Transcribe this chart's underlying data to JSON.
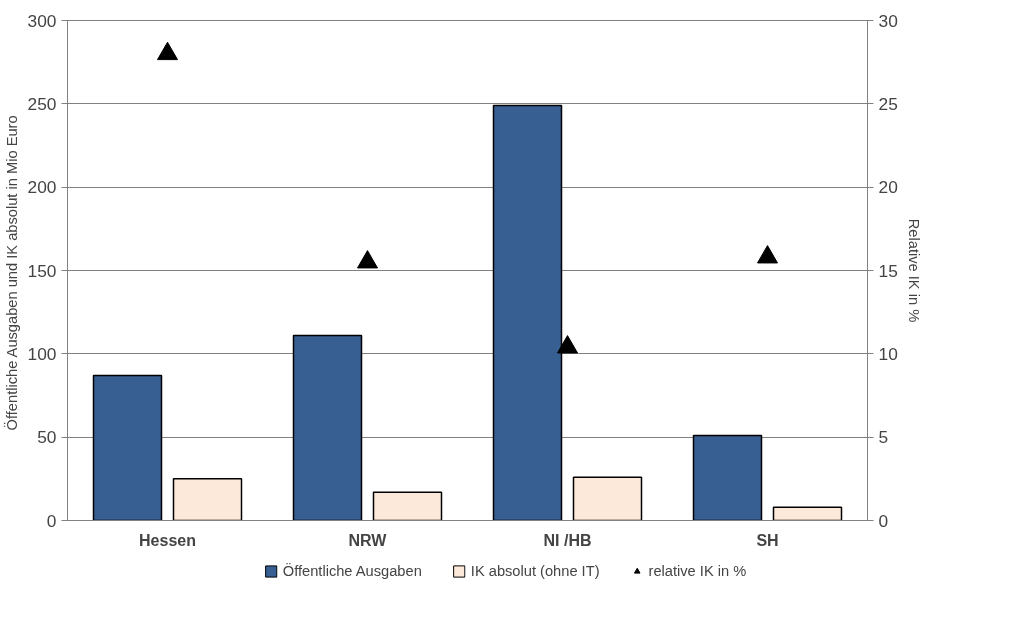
{
  "chart_data": {
    "type": "bar",
    "categories": [
      "Hessen",
      "NRW",
      "NI /HB",
      "SH"
    ],
    "series": [
      {
        "name": "Öffentliche Ausgaben",
        "color": "#375f91",
        "values": [
          87,
          111,
          249,
          51
        ]
      },
      {
        "name": "IK absolut (ohne IT)",
        "color": "#fce9d9",
        "values": [
          25,
          17,
          26,
          8
        ]
      },
      {
        "name": "relative IK in %",
        "color": "#000000",
        "type": "scatter",
        "axis": "y2",
        "values": [
          28.0,
          15.5,
          10.4,
          15.8
        ]
      }
    ],
    "ylabel": "Öffentliche Ausgaben und IK absolut in Mio  Euro",
    "y2label": "Relative IK in %",
    "ylim": [
      0,
      300
    ],
    "yticks": [
      0,
      50,
      100,
      150,
      200,
      250,
      300
    ],
    "y2lim": [
      0,
      30
    ],
    "y2ticks": [
      0,
      5,
      10,
      15,
      20,
      25,
      30
    ],
    "grid": "y",
    "legend": "bottom",
    "marker": "triangle"
  }
}
